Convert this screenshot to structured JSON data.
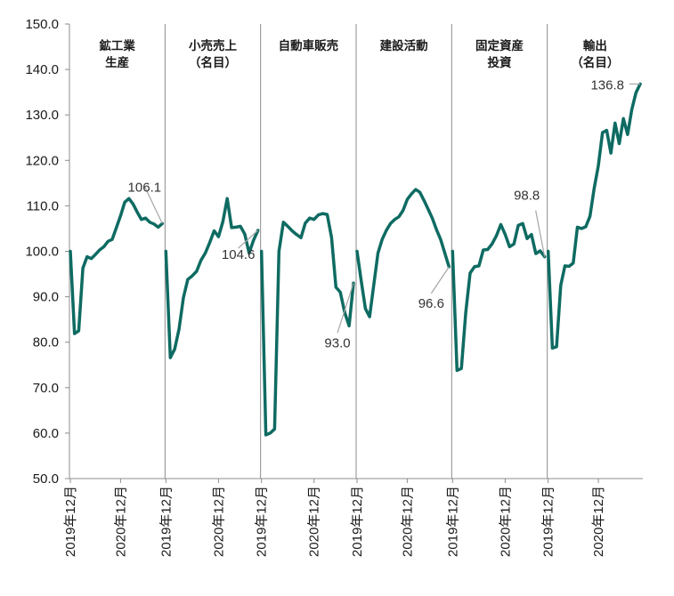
{
  "colors": {
    "line": "#0e6b62",
    "leader": "#a6a6a6",
    "axis": "#8c8c8c",
    "text": "#1a1a1a"
  },
  "chart_data": {
    "type": "line",
    "title": "",
    "xlabel": "",
    "ylabel": "",
    "ylim": [
      50,
      150
    ],
    "yticks": [
      "50.0",
      "60.0",
      "70.0",
      "80.0",
      "90.0",
      "100.0",
      "110.0",
      "120.0",
      "130.0",
      "140.0",
      "150.0"
    ],
    "grid": false,
    "panels": [
      {
        "title_lines": [
          "鉱工業",
          "生産"
        ],
        "x_labels": [
          "2019年12月",
          "2020年12月"
        ],
        "values": [
          100.0,
          81.9,
          82.5,
          96.3,
          98.8,
          98.4,
          99.3,
          100.3,
          101.0,
          102.2,
          102.6,
          105.2,
          107.8,
          110.8,
          111.6,
          110.4,
          108.6,
          107.0,
          107.3,
          106.4,
          106.0,
          105.3,
          106.1
        ],
        "end_label": "106.1"
      },
      {
        "title_lines": [
          "小売売上",
          "（名目）"
        ],
        "x_labels": [
          "2019年12月",
          "2020年12月"
        ],
        "values": [
          100.0,
          76.6,
          78.5,
          82.9,
          89.8,
          93.8,
          94.6,
          95.6,
          98.0,
          99.6,
          101.9,
          104.5,
          103.2,
          106.5,
          111.6,
          105.2,
          105.3,
          105.5,
          103.8,
          99.6,
          102.4,
          104.6
        ],
        "end_label": "104.6"
      },
      {
        "title_lines": [
          "自動車販売"
        ],
        "x_labels": [
          "2019年12月",
          "2020年12月"
        ],
        "values": [
          100.0,
          59.6,
          60.0,
          60.9,
          100.0,
          106.4,
          105.5,
          104.5,
          103.7,
          103.0,
          106.2,
          107.3,
          107.0,
          108.0,
          108.3,
          108.1,
          103.0,
          92.1,
          91.0,
          86.5,
          83.6,
          93.0
        ],
        "end_label": "93.0"
      },
      {
        "title_lines": [
          "建設活動"
        ],
        "x_labels": [
          "2019年12月",
          "2020年12月"
        ],
        "values": [
          100.0,
          93.5,
          87.4,
          85.6,
          92.6,
          99.6,
          102.6,
          104.6,
          106.1,
          107.0,
          107.6,
          109.0,
          111.4,
          112.6,
          113.6,
          113.0,
          111.2,
          109.3,
          107.3,
          104.8,
          102.6,
          99.6,
          96.6
        ],
        "end_label": "96.6"
      },
      {
        "title_lines": [
          "固定資産",
          "投資"
        ],
        "x_labels": [
          "2019年12月",
          "2020年12月"
        ],
        "values": [
          100.0,
          73.8,
          74.2,
          86.5,
          95.2,
          96.6,
          96.8,
          100.3,
          100.4,
          101.6,
          103.4,
          105.9,
          103.7,
          101.0,
          101.6,
          105.7,
          106.1,
          102.8,
          103.7,
          99.5,
          100.1,
          98.8
        ],
        "end_label": "98.8"
      },
      {
        "title_lines": [
          "輸出",
          "（名目）"
        ],
        "x_labels": [
          "2019年12月",
          "2020年12月"
        ],
        "values": [
          100.0,
          78.7,
          79.0,
          92.5,
          96.8,
          96.7,
          97.4,
          105.3,
          105.0,
          105.4,
          107.7,
          113.8,
          118.8,
          126.1,
          126.6,
          121.6,
          128.2,
          123.7,
          129.2,
          125.7,
          131.2,
          134.9,
          136.8
        ],
        "end_label": "136.8"
      }
    ]
  }
}
